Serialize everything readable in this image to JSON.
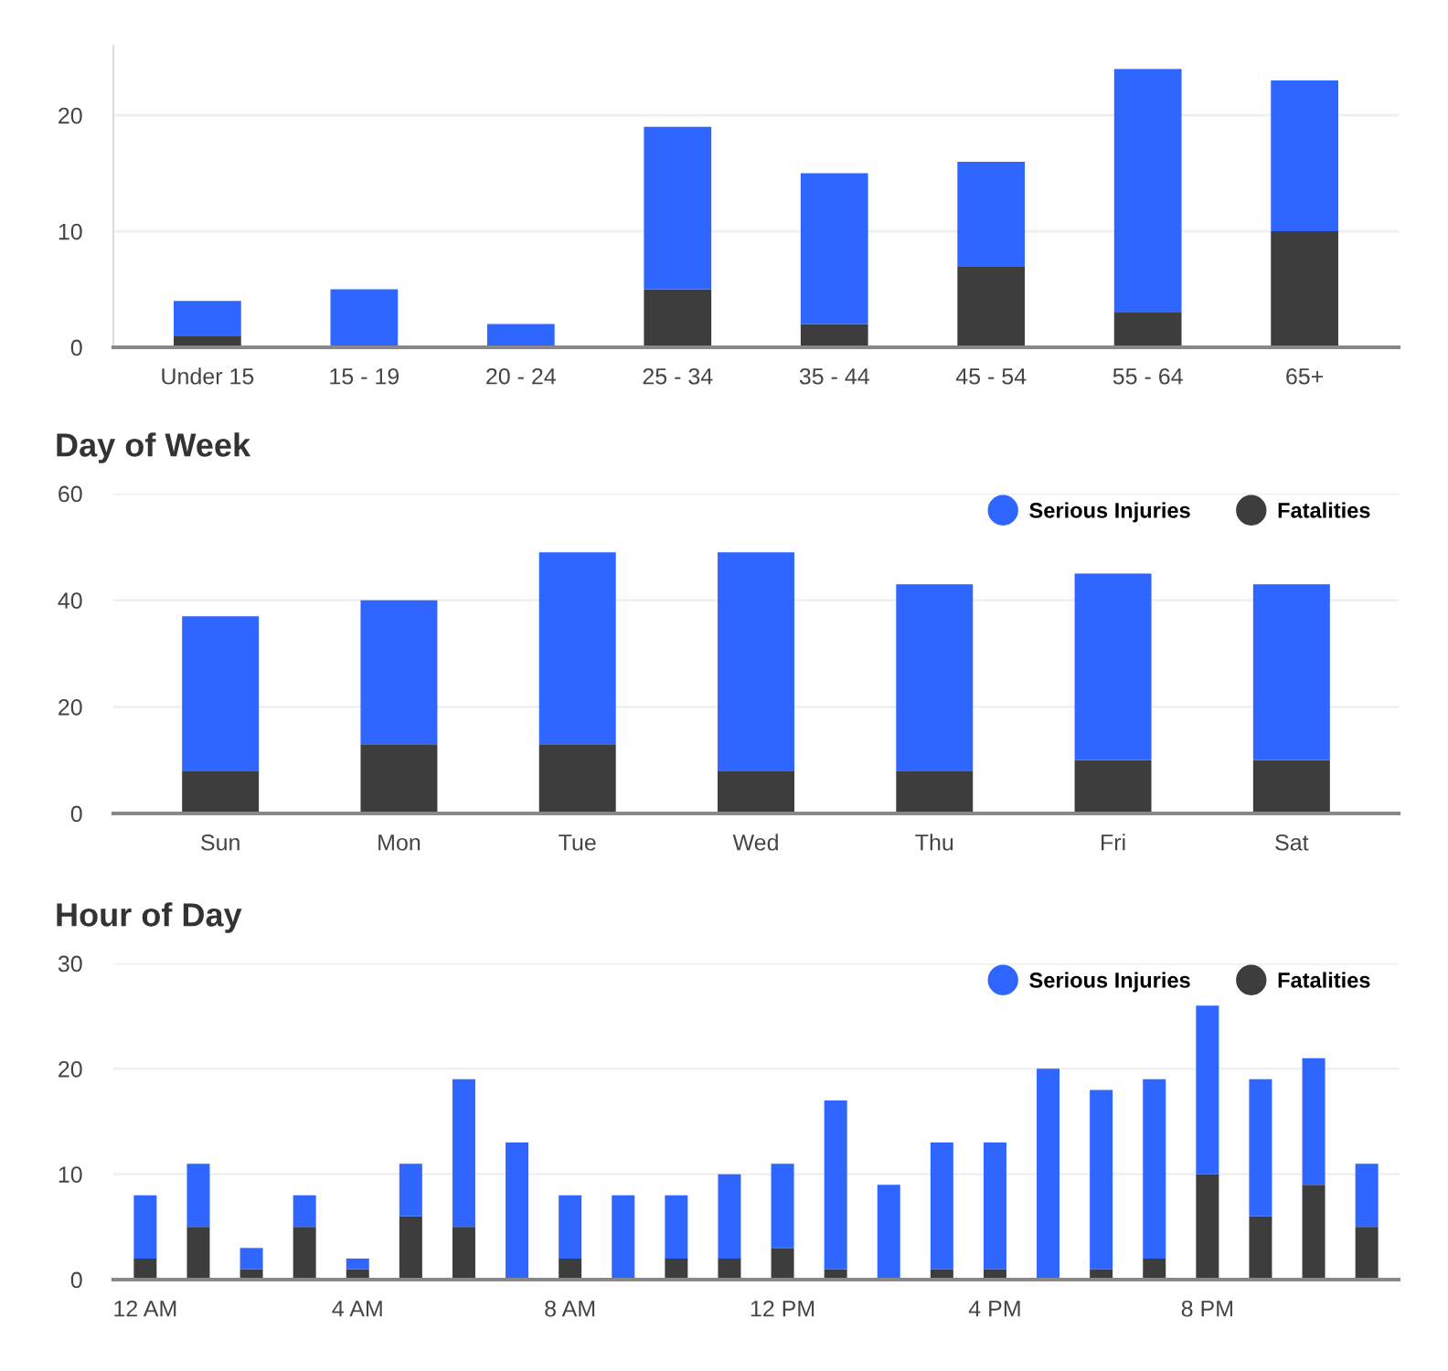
{
  "chart_data": [
    {
      "type": "bar",
      "stacked": true,
      "categories": [
        "Under 15",
        "15 - 19",
        "20 - 24",
        "25 - 34",
        "35 - 44",
        "45 - 54",
        "55 - 64",
        "65+"
      ],
      "ylim": [
        0,
        26
      ],
      "yticks": [
        0,
        10,
        20
      ],
      "grid": "y",
      "legend": false,
      "series": [
        {
          "color": "#3d3d3d",
          "values": [
            1,
            0,
            0,
            5,
            2,
            7,
            3,
            10
          ]
        },
        {
          "color": "#2e66ff",
          "values": [
            3,
            5,
            2,
            14,
            13,
            9,
            21,
            13
          ]
        }
      ]
    },
    {
      "type": "bar",
      "stacked": true,
      "title": "Day of Week",
      "categories": [
        "Sun",
        "Mon",
        "Tue",
        "Wed",
        "Thu",
        "Fri",
        "Sat"
      ],
      "ylim": [
        0,
        60
      ],
      "yticks": [
        0,
        20,
        40,
        60
      ],
      "grid": "y",
      "legend": "top right",
      "series": [
        {
          "name": "Fatalities",
          "color": "#3d3d3d",
          "values": [
            8,
            13,
            13,
            8,
            8,
            10,
            10
          ]
        },
        {
          "name": "Serious Injuries",
          "color": "#2e66ff",
          "values": [
            29,
            27,
            36,
            41,
            35,
            35,
            33
          ]
        }
      ]
    },
    {
      "type": "bar",
      "stacked": true,
      "title": "Hour of Day",
      "categories": [
        "12 AM",
        null,
        null,
        null,
        "4 AM",
        null,
        null,
        null,
        "8 AM",
        null,
        null,
        null,
        "12 PM",
        null,
        null,
        null,
        "4 PM",
        null,
        null,
        null,
        "8 PM",
        null,
        null,
        null
      ],
      "ylim": [
        0,
        30
      ],
      "yticks": [
        0,
        10,
        20,
        30
      ],
      "grid": "y",
      "legend": "top right",
      "series": [
        {
          "name": "Fatalities",
          "color": "#3d3d3d",
          "values": [
            2,
            5,
            1,
            5,
            1,
            6,
            5,
            0,
            2,
            0,
            2,
            2,
            3,
            1,
            0,
            1,
            1,
            0,
            1,
            2,
            10,
            6,
            9,
            5
          ]
        },
        {
          "name": "Serious Injuries",
          "color": "#2e66ff",
          "values": [
            6,
            6,
            2,
            3,
            1,
            5,
            14,
            13,
            6,
            8,
            6,
            8,
            8,
            16,
            9,
            12,
            12,
            20,
            17,
            17,
            16,
            13,
            12,
            6
          ]
        }
      ]
    }
  ]
}
